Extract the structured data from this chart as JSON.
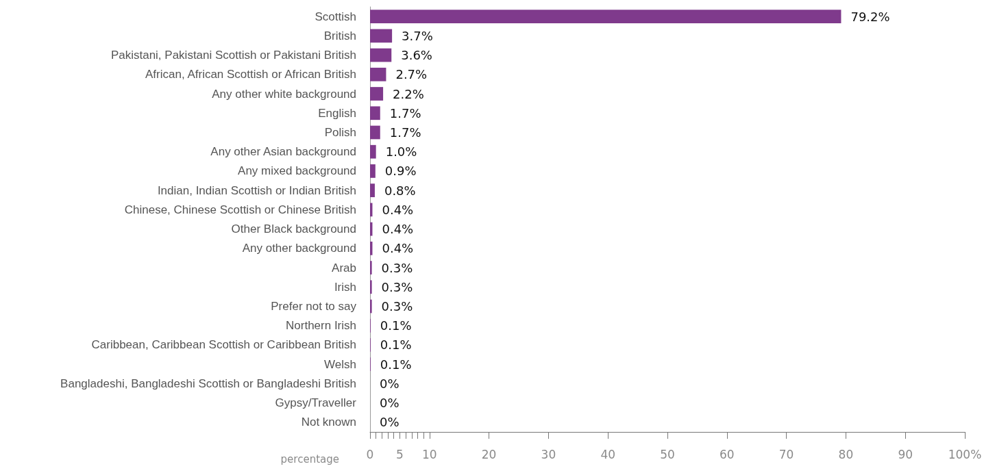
{
  "chart_data": {
    "type": "bar",
    "orientation": "horizontal",
    "xlabel": "percentage",
    "categories": [
      "Scottish",
      "British",
      "Pakistani, Pakistani Scottish or Pakistani British",
      "African, African Scottish or African British",
      "Any other white background",
      "English",
      "Polish",
      "Any other Asian background",
      "Any mixed background",
      "Indian, Indian Scottish or Indian British",
      "Chinese, Chinese Scottish or Chinese British",
      "Other Black background",
      "Any other background",
      "Arab",
      "Irish",
      "Prefer not to say",
      "Northern Irish",
      "Caribbean, Caribbean Scottish or Caribbean British",
      "Welsh",
      "Bangladeshi, Bangladeshi Scottish or Bangladeshi British",
      "Gypsy/Traveller",
      "Not known"
    ],
    "values": [
      79.2,
      3.7,
      3.6,
      2.7,
      2.2,
      1.7,
      1.7,
      1.0,
      0.9,
      0.8,
      0.4,
      0.4,
      0.4,
      0.3,
      0.3,
      0.3,
      0.1,
      0.1,
      0.1,
      0,
      0,
      0
    ],
    "value_labels": [
      "79.2%",
      "3.7%",
      "3.6%",
      "2.7%",
      "2.2%",
      "1.7%",
      "1.7%",
      "1.0%",
      "0.9%",
      "0.8%",
      "0.4%",
      "0.4%",
      "0.4%",
      "0.3%",
      "0.3%",
      "0.3%",
      "0.1%",
      "0.1%",
      "0.1%",
      "0%",
      "0%",
      "0%"
    ],
    "color": "#7f3a8c",
    "xlim": [
      0,
      100
    ],
    "xticks": [
      0,
      {
        "value": 1,
        "label": null
      },
      {
        "value": 2,
        "label": null
      },
      {
        "value": 3,
        "label": null
      },
      {
        "value": 4,
        "label": null
      },
      5,
      {
        "value": 6,
        "label": null
      },
      {
        "value": 7,
        "label": null
      },
      {
        "value": 8,
        "label": null
      },
      {
        "value": 9,
        "label": null
      },
      10,
      20,
      30,
      40,
      50,
      60,
      70,
      80,
      90,
      {
        "value": 100,
        "label": "100%"
      }
    ],
    "grid": false
  }
}
